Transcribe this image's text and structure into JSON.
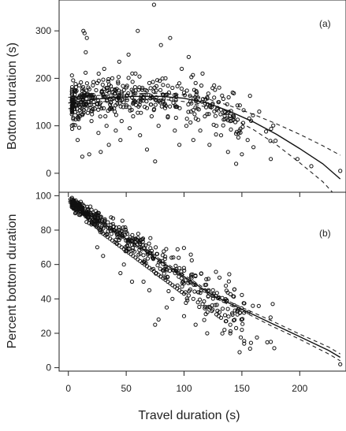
{
  "chart_data": [
    {
      "type": "scatter",
      "panel_label": "(a)",
      "xlabel": "",
      "ylabel": "Bottom duration (s)",
      "xlim": [
        -8,
        240
      ],
      "ylim": [
        -40,
        365
      ],
      "xticks": [
        0,
        50,
        100,
        150,
        200
      ],
      "yticks": [
        0,
        100,
        200,
        300
      ],
      "show_xtick_labels": false,
      "grid": false,
      "points_approx": [
        [
          8,
          70
        ],
        [
          10,
          120
        ],
        [
          12,
          35
        ],
        [
          13,
          300
        ],
        [
          14,
          295
        ],
        [
          15,
          255
        ],
        [
          16,
          285
        ],
        [
          18,
          40
        ],
        [
          20,
          110
        ],
        [
          21,
          135
        ],
        [
          22,
          150
        ],
        [
          23,
          160
        ],
        [
          24,
          175
        ],
        [
          25,
          190
        ],
        [
          26,
          85
        ],
        [
          27,
          140
        ],
        [
          28,
          45
        ],
        [
          30,
          165
        ],
        [
          31,
          220
        ],
        [
          32,
          120
        ],
        [
          33,
          100
        ],
        [
          34,
          180
        ],
        [
          35,
          60
        ],
        [
          36,
          145
        ],
        [
          38,
          200
        ],
        [
          40,
          130
        ],
        [
          41,
          90
        ],
        [
          42,
          155
        ],
        [
          44,
          235
        ],
        [
          45,
          70
        ],
        [
          46,
          110
        ],
        [
          48,
          175
        ],
        [
          50,
          140
        ],
        [
          52,
          250
        ],
        [
          53,
          95
        ],
        [
          55,
          160
        ],
        [
          56,
          120
        ],
        [
          58,
          210
        ],
        [
          60,
          300
        ],
        [
          62,
          80
        ],
        [
          64,
          180
        ],
        [
          66,
          140
        ],
        [
          68,
          50
        ],
        [
          70,
          190
        ],
        [
          72,
          120
        ],
        [
          74,
          355
        ],
        [
          75,
          25
        ],
        [
          76,
          160
        ],
        [
          78,
          100
        ],
        [
          80,
          270
        ],
        [
          82,
          150
        ],
        [
          84,
          200
        ],
        [
          86,
          120
        ],
        [
          88,
          285
        ],
        [
          90,
          180
        ],
        [
          92,
          90
        ],
        [
          94,
          140
        ],
        [
          96,
          60
        ],
        [
          98,
          220
        ],
        [
          100,
          170
        ],
        [
          102,
          100
        ],
        [
          104,
          245
        ],
        [
          106,
          130
        ],
        [
          108,
          70
        ],
        [
          110,
          190
        ],
        [
          112,
          150
        ],
        [
          114,
          90
        ],
        [
          116,
          210
        ],
        [
          118,
          120
        ],
        [
          120,
          160
        ],
        [
          122,
          60
        ],
        [
          124,
          140
        ],
        [
          126,
          185
        ],
        [
          128,
          100
        ],
        [
          130,
          150
        ],
        [
          132,
          80
        ],
        [
          135,
          130
        ],
        [
          138,
          45
        ],
        [
          140,
          110
        ],
        [
          142,
          170
        ],
        [
          145,
          20
        ],
        [
          148,
          90
        ],
        [
          150,
          40
        ],
        [
          155,
          70
        ],
        [
          160,
          55
        ],
        [
          165,
          130
        ],
        [
          175,
          30
        ],
        [
          198,
          30
        ],
        [
          210,
          15
        ],
        [
          235,
          5
        ]
      ],
      "fit_line": {
        "x": [
          0,
          20,
          40,
          60,
          80,
          100,
          120,
          140,
          160,
          180,
          200,
          220,
          235
        ],
        "y": [
          148,
          155,
          160,
          162,
          162,
          158,
          148,
          130,
          108,
          82,
          52,
          20,
          -12
        ]
      },
      "ci_upper": {
        "x": [
          0,
          20,
          40,
          60,
          80,
          100,
          120,
          140,
          160,
          180,
          200,
          220,
          235
        ],
        "y": [
          160,
          163,
          166,
          168,
          168,
          165,
          157,
          142,
          124,
          104,
          82,
          58,
          38
        ]
      },
      "ci_lower": {
        "x": [
          0,
          20,
          40,
          60,
          80,
          100,
          120,
          140,
          160,
          180,
          200,
          220,
          235
        ],
        "y": [
          136,
          147,
          154,
          156,
          156,
          151,
          139,
          118,
          92,
          60,
          22,
          -18,
          -58
        ]
      }
    },
    {
      "type": "scatter",
      "panel_label": "(b)",
      "xlabel": "Travel duration (s)",
      "ylabel": "Percent bottom duration",
      "xlim": [
        -8,
        240
      ],
      "ylim": [
        -2,
        102
      ],
      "xticks": [
        0,
        50,
        100,
        150,
        200
      ],
      "yticks": [
        0,
        20,
        40,
        60,
        80,
        100
      ],
      "show_xtick_labels": true,
      "grid": false,
      "points_approx": [
        [
          2,
          98
        ],
        [
          4,
          97
        ],
        [
          5,
          96
        ],
        [
          6,
          95
        ],
        [
          7,
          95
        ],
        [
          8,
          94
        ],
        [
          9,
          93
        ],
        [
          10,
          92
        ],
        [
          11,
          92
        ],
        [
          12,
          91
        ],
        [
          13,
          90
        ],
        [
          14,
          89
        ],
        [
          15,
          88
        ],
        [
          16,
          88
        ],
        [
          17,
          87
        ],
        [
          18,
          86
        ],
        [
          19,
          86
        ],
        [
          20,
          85
        ],
        [
          21,
          84
        ],
        [
          22,
          84
        ],
        [
          23,
          83
        ],
        [
          24,
          82
        ],
        [
          25,
          82
        ],
        [
          26,
          81
        ],
        [
          27,
          80
        ],
        [
          28,
          80
        ],
        [
          29,
          79
        ],
        [
          30,
          78
        ],
        [
          32,
          77
        ],
        [
          34,
          76
        ],
        [
          36,
          75
        ],
        [
          38,
          74
        ],
        [
          40,
          73
        ],
        [
          42,
          72
        ],
        [
          44,
          71
        ],
        [
          46,
          70
        ],
        [
          48,
          69
        ],
        [
          50,
          68
        ],
        [
          52,
          67
        ],
        [
          54,
          66
        ],
        [
          56,
          65
        ],
        [
          58,
          64
        ],
        [
          60,
          63
        ],
        [
          62,
          62
        ],
        [
          64,
          61
        ],
        [
          66,
          60
        ],
        [
          68,
          59
        ],
        [
          70,
          58
        ],
        [
          72,
          57
        ],
        [
          74,
          56
        ],
        [
          76,
          55
        ],
        [
          78,
          54
        ],
        [
          80,
          53
        ],
        [
          82,
          52
        ],
        [
          84,
          51
        ],
        [
          86,
          50
        ],
        [
          88,
          49
        ],
        [
          90,
          48
        ],
        [
          92,
          47
        ],
        [
          94,
          46
        ],
        [
          96,
          45
        ],
        [
          98,
          44
        ],
        [
          100,
          43
        ],
        [
          104,
          42
        ],
        [
          108,
          40
        ],
        [
          112,
          38
        ],
        [
          116,
          37
        ],
        [
          120,
          35
        ],
        [
          124,
          33
        ],
        [
          128,
          31
        ],
        [
          132,
          29
        ],
        [
          136,
          27
        ],
        [
          140,
          25
        ],
        [
          145,
          23
        ],
        [
          150,
          22
        ],
        [
          25,
          70
        ],
        [
          30,
          65
        ],
        [
          45,
          55
        ],
        [
          48,
          60
        ],
        [
          55,
          50
        ],
        [
          58,
          75
        ],
        [
          62,
          72
        ],
        [
          65,
          50
        ],
        [
          70,
          45
        ],
        [
          75,
          25
        ],
        [
          78,
          28
        ],
        [
          85,
          35
        ],
        [
          90,
          40
        ],
        [
          95,
          55
        ],
        [
          100,
          30
        ],
        [
          105,
          50
        ],
        [
          110,
          25
        ],
        [
          115,
          45
        ],
        [
          120,
          20
        ],
        [
          125,
          45
        ],
        [
          130,
          30
        ],
        [
          140,
          20
        ],
        [
          148,
          9
        ],
        [
          152,
          14
        ],
        [
          175,
          15
        ],
        [
          235,
          2
        ]
      ],
      "fit_line": {
        "x": [
          0,
          25,
          50,
          75,
          100,
          125,
          150,
          175,
          200,
          225,
          235
        ],
        "y": [
          97,
          86,
          75,
          64,
          53,
          42,
          34,
          26,
          18,
          10,
          6
        ]
      },
      "ci_upper": {
        "x": [
          0,
          25,
          50,
          75,
          100,
          125,
          150,
          175,
          200,
          225,
          235
        ],
        "y": [
          98,
          87,
          76,
          65,
          54,
          43,
          35,
          27.5,
          19.5,
          12,
          8
        ]
      },
      "ci_lower": {
        "x": [
          0,
          25,
          50,
          75,
          100,
          125,
          150,
          175,
          200,
          225,
          235
        ],
        "y": [
          96,
          85,
          74,
          63,
          52,
          41,
          33,
          24.5,
          16.5,
          8,
          4
        ]
      }
    }
  ]
}
